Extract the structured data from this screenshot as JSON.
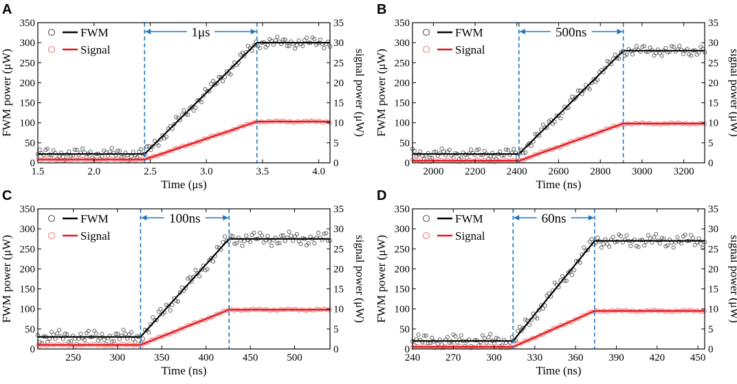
{
  "colors": {
    "fwm": "#000000",
    "fwm_points": "#555555",
    "signal": "#e8141b",
    "signal_points": "#f08080",
    "marker": "#1f77c4"
  },
  "chart_data": [
    {
      "type": "line",
      "panel": "A",
      "xlabel": "Time (μs)",
      "ylabel": "FWM power (μW)",
      "y2label": "signal power (μW)",
      "xlim": [
        1.5,
        4.1
      ],
      "ylim": [
        0,
        350
      ],
      "y2lim": [
        0,
        35
      ],
      "xticks": [
        1.5,
        2.0,
        2.5,
        3.0,
        3.5,
        4.0
      ],
      "xtick_labels": [
        "1.5",
        "2.0",
        "2.5",
        "3.0",
        "3.5",
        "4.0"
      ],
      "yticks": [
        0,
        50,
        100,
        150,
        200,
        250,
        300,
        350
      ],
      "y2ticks": [
        0,
        5,
        10,
        15,
        20,
        25,
        30,
        35
      ],
      "legend": [
        "FWM",
        "Signal"
      ],
      "annotation": {
        "text": "1μs",
        "x_start": 2.45,
        "x_end": 3.45
      },
      "series": [
        {
          "name": "FWM",
          "axis": "left",
          "fit": {
            "x": [
              1.5,
              2.45,
              3.45,
              4.1
            ],
            "y": [
              22,
              22,
              300,
              300
            ]
          },
          "wiggle": 15
        },
        {
          "name": "Signal",
          "axis": "right",
          "fit": {
            "x": [
              1.5,
              2.45,
              3.45,
              4.1
            ],
            "y": [
              0.8,
              0.8,
              10.3,
              10.3
            ]
          },
          "wiggle": 0.3
        }
      ]
    },
    {
      "type": "line",
      "panel": "B",
      "xlabel": "Time (ns)",
      "ylabel": "FWM power (μW)",
      "y2label": "signal power (μW)",
      "xlim": [
        1900,
        3300
      ],
      "ylim": [
        0,
        350
      ],
      "y2lim": [
        0,
        35
      ],
      "xticks": [
        2000,
        2200,
        2400,
        2600,
        2800,
        3000,
        3200
      ],
      "xtick_labels": [
        "2000",
        "2200",
        "2400",
        "2600",
        "2800",
        "3000",
        "3200"
      ],
      "yticks": [
        0,
        50,
        100,
        150,
        200,
        250,
        300,
        350
      ],
      "y2ticks": [
        0,
        5,
        10,
        15,
        20,
        25,
        30,
        35
      ],
      "legend": [
        "FWM",
        "Signal"
      ],
      "annotation": {
        "text": "500ns",
        "x_start": 2410,
        "x_end": 2910
      },
      "series": [
        {
          "name": "FWM",
          "axis": "left",
          "fit": {
            "x": [
              1900,
              2410,
              2910,
              3300
            ],
            "y": [
              22,
              22,
              280,
              280
            ]
          },
          "wiggle": 14
        },
        {
          "name": "Signal",
          "axis": "right",
          "fit": {
            "x": [
              1900,
              2410,
              2910,
              3300
            ],
            "y": [
              0.5,
              0.5,
              9.8,
              9.8
            ]
          },
          "wiggle": 0.3
        }
      ]
    },
    {
      "type": "line",
      "panel": "C",
      "xlabel": "Time (ns)",
      "ylabel": "FWM power (μW)",
      "y2label": "signal power (μW)",
      "xlim": [
        210,
        540
      ],
      "ylim": [
        0,
        350
      ],
      "y2lim": [
        0,
        35
      ],
      "xticks": [
        250,
        300,
        350,
        400,
        450,
        500
      ],
      "xtick_labels": [
        "250",
        "300",
        "350",
        "400",
        "450",
        "500"
      ],
      "yticks": [
        0,
        50,
        100,
        150,
        200,
        250,
        300,
        350
      ],
      "y2ticks": [
        0,
        5,
        10,
        15,
        20,
        25,
        30,
        35
      ],
      "legend": [
        "FWM",
        "Signal"
      ],
      "annotation": {
        "text": "100ns",
        "x_start": 326,
        "x_end": 426
      },
      "series": [
        {
          "name": "FWM",
          "axis": "left",
          "fit": {
            "x": [
              210,
              326,
              426,
              540
            ],
            "y": [
              30,
              30,
              275,
              275
            ]
          },
          "wiggle": 18
        },
        {
          "name": "Signal",
          "axis": "right",
          "fit": {
            "x": [
              210,
              326,
              426,
              540
            ],
            "y": [
              1.0,
              1.0,
              9.8,
              9.8
            ]
          },
          "wiggle": 0.3
        }
      ]
    },
    {
      "type": "line",
      "panel": "D",
      "xlabel": "Time (ns)",
      "ylabel": "FWM power (μW)",
      "y2label": "signal power (μW)",
      "xlim": [
        240,
        455
      ],
      "ylim": [
        0,
        350
      ],
      "y2lim": [
        0,
        35
      ],
      "xticks": [
        240,
        270,
        300,
        330,
        360,
        390,
        420,
        450
      ],
      "xtick_labels": [
        "240",
        "270",
        "300",
        "330",
        "360",
        "390",
        "420",
        "450"
      ],
      "yticks": [
        0,
        50,
        100,
        150,
        200,
        250,
        300,
        350
      ],
      "y2ticks": [
        0,
        5,
        10,
        15,
        20,
        25,
        30,
        35
      ],
      "legend": [
        "FWM",
        "Signal"
      ],
      "annotation": {
        "text": "60ns",
        "x_start": 314,
        "x_end": 374
      },
      "series": [
        {
          "name": "FWM",
          "axis": "left",
          "fit": {
            "x": [
              240,
              314,
              374,
              455
            ],
            "y": [
              20,
              20,
              270,
              270
            ]
          },
          "wiggle": 18
        },
        {
          "name": "Signal",
          "axis": "right",
          "fit": {
            "x": [
              240,
              314,
              374,
              455
            ],
            "y": [
              0.5,
              0.5,
              9.5,
              9.5
            ]
          },
          "wiggle": 0.3
        }
      ]
    }
  ]
}
